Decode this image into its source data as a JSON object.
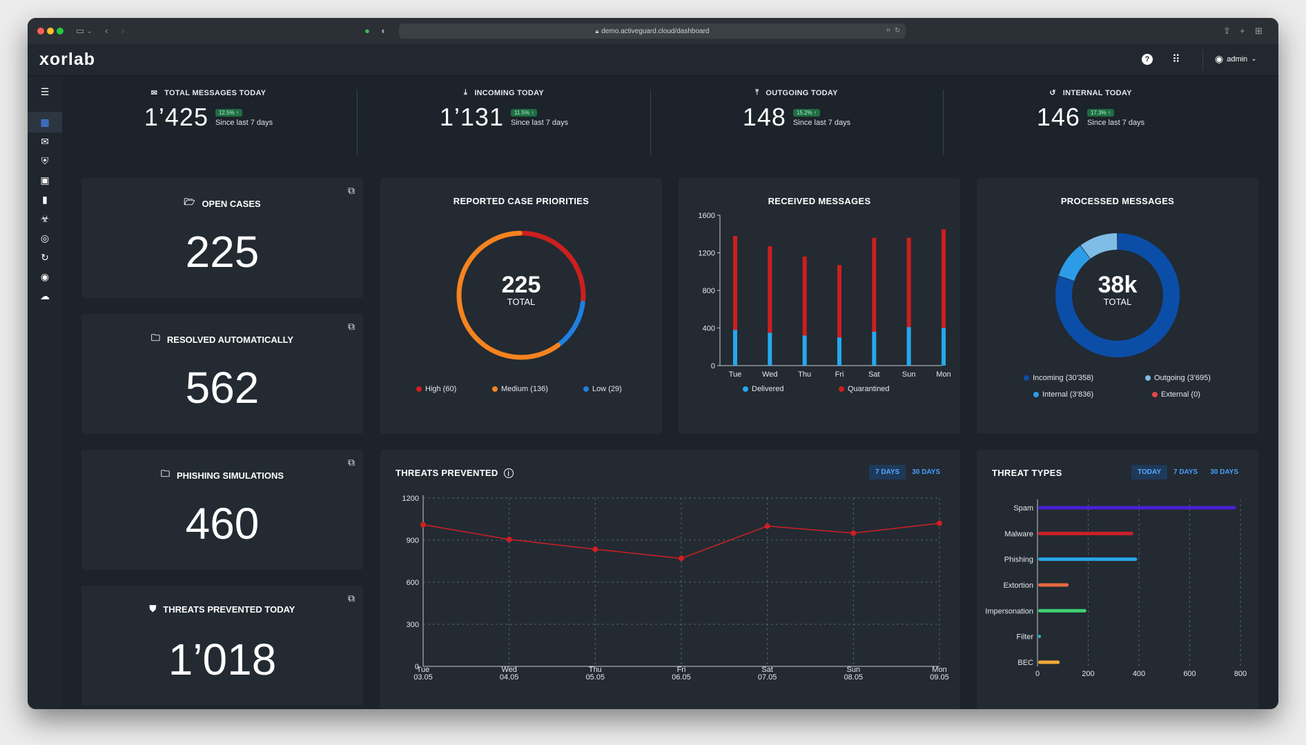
{
  "browser": {
    "url": "demo.activeguard.cloud/dashboard",
    "traffic_lights": [
      "#ff5f57",
      "#febc2e",
      "#28c840"
    ]
  },
  "app": {
    "logo": "xorlab",
    "user": "admin"
  },
  "sidebar": {
    "icons": [
      "menu-icon",
      "dashboard-icon",
      "mail-icon",
      "shield-icon",
      "report-icon",
      "bookmark-icon",
      "biohazard-icon",
      "compass-icon",
      "refresh-icon",
      "eye-icon",
      "upload-cloud-icon"
    ]
  },
  "stats": [
    {
      "label": "TOTAL MESSAGES TODAY",
      "value": "1’425",
      "badge": "12.5% ↑",
      "sub": "Since last 7 days"
    },
    {
      "label": "INCOMING TODAY",
      "value": "1’131",
      "badge": "11.5% ↑",
      "sub": "Since last 7 days"
    },
    {
      "label": "OUTGOING TODAY",
      "value": "148",
      "badge": "15.2% ↑",
      "sub": "Since last 7 days"
    },
    {
      "label": "INTERNAL TODAY",
      "value": "146",
      "badge": "17.3% ↑",
      "sub": "Since last 7 days"
    }
  ],
  "kpis": [
    {
      "label": "OPEN CASES",
      "value": "225"
    },
    {
      "label": "RESOLVED AUTOMATICALLY",
      "value": "562"
    },
    {
      "label": "PHISHING SIMULATIONS",
      "value": "460"
    },
    {
      "label": "THREATS PREVENTED TODAY",
      "value": "1’018"
    }
  ],
  "colors": {
    "high": "#cc1f1f",
    "medium": "#f5831f",
    "low": "#1f7fe0",
    "delivered": "#26a8ee",
    "incoming": "#0b4ea8",
    "outgoing": "#2d9ce8",
    "internal": "#7fbce6",
    "external": "#e04848",
    "line": "#d11f24"
  },
  "chart_data": [
    {
      "type": "pie",
      "title": "REPORTED CASE PRIORITIES",
      "center_value": "225",
      "center_label": "TOTAL",
      "slices": [
        {
          "name": "High",
          "value": 60
        },
        {
          "name": "Medium",
          "value": 136
        },
        {
          "name": "Low",
          "value": 29
        }
      ],
      "legend": [
        "High (60)",
        "Medium (136)",
        "Low (29)"
      ]
    },
    {
      "type": "bar",
      "title": "RECEIVED MESSAGES",
      "categories": [
        "Tue",
        "Wed",
        "Thu",
        "Fri",
        "Sat",
        "Sun",
        "Mon"
      ],
      "series": [
        {
          "name": "Delivered",
          "values": [
            380,
            350,
            320,
            300,
            360,
            410,
            400
          ]
        },
        {
          "name": "Quarantined",
          "values": [
            1000,
            920,
            840,
            770,
            1000,
            950,
            1050
          ]
        }
      ],
      "stacked": true,
      "ylim": [
        0,
        1600
      ],
      "yticks": [
        0,
        400,
        800,
        1200,
        1600
      ]
    },
    {
      "type": "pie",
      "title": "PROCESSED MESSAGES",
      "center_value": "38k",
      "center_label": "TOTAL",
      "slices": [
        {
          "name": "Incoming",
          "value": 30358
        },
        {
          "name": "Outgoing",
          "value": 3695
        },
        {
          "name": "Internal",
          "value": 3836
        },
        {
          "name": "External",
          "value": 0
        }
      ],
      "legend": [
        "Incoming (30’358)",
        "Outgoing (3’695)",
        "Internal (3’836)",
        "External (0)"
      ]
    },
    {
      "type": "line",
      "title": "THREATS PREVENTED",
      "x": [
        "Tue",
        "Wed",
        "Thu",
        "Fri",
        "Sat",
        "Sun",
        "Mon"
      ],
      "x_dates": [
        "03.05",
        "04.05",
        "05.05",
        "06.05",
        "07.05",
        "08.05",
        "09.05"
      ],
      "values": [
        1010,
        905,
        835,
        770,
        1000,
        950,
        1020
      ],
      "ylim": [
        0,
        1200
      ],
      "yticks": [
        0,
        300,
        600,
        900,
        1200
      ],
      "grid": true,
      "toggles": [
        "7 DAYS",
        "30 DAYS"
      ]
    },
    {
      "type": "bar",
      "orientation": "horizontal",
      "title": "THREAT TYPES",
      "categories": [
        "Spam",
        "Malware",
        "Phishing",
        "Extortion",
        "Impersonation",
        "Filter",
        "BEC"
      ],
      "values": [
        780,
        375,
        390,
        120,
        190,
        10,
        85
      ],
      "bar_colors": [
        "#4b1fd6",
        "#cc2027",
        "#2aa5e6",
        "#e76b40",
        "#3fcf71",
        "#26b5c6",
        "#f2a93b"
      ],
      "xlim": [
        0,
        800
      ],
      "xticks": [
        0,
        200,
        400,
        600,
        800
      ],
      "toggles": [
        "TODAY",
        "7 DAYS",
        "30 DAYS"
      ]
    }
  ]
}
